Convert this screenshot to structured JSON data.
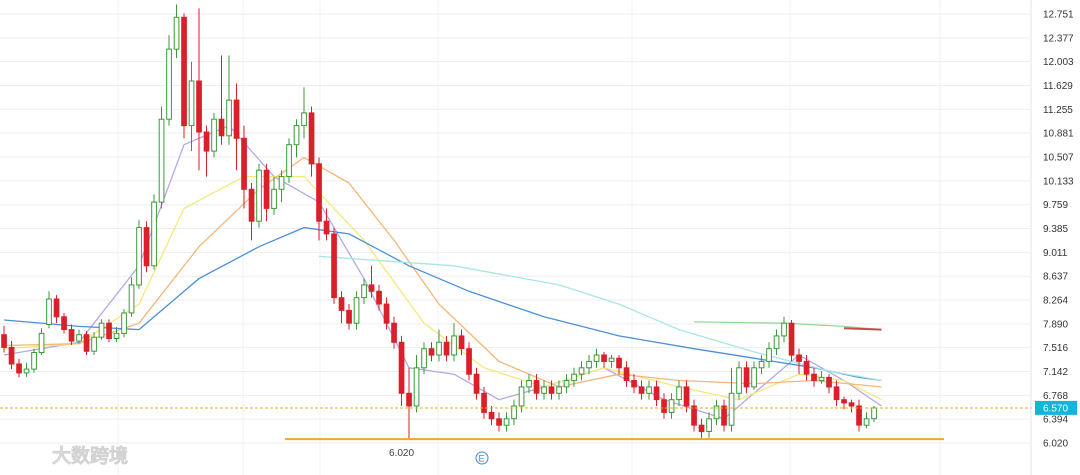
{
  "chart_data": {
    "type": "candlestick",
    "y_ticks": [
      "12.751",
      "12.377",
      "12.003",
      "11.629",
      "11.255",
      "10.881",
      "10.507",
      "10.133",
      "9.759",
      "9.385",
      "9.011",
      "8.637",
      "8.264",
      "7.890",
      "7.516",
      "7.142",
      "6.768",
      "6.394",
      "6.020"
    ],
    "ylim": [
      6.02,
      12.751
    ],
    "current_price_label": "6.570",
    "current_price": 6.57,
    "support_level": 6.08,
    "min_price_label": "6.020",
    "marker_label": "E",
    "grid": true,
    "colors": {
      "up": "#3a9a3a",
      "down": "#d9212b",
      "support": "#f5a623",
      "current": "#f5a623",
      "price_tag": "#13b5d8"
    },
    "candles": [
      [
        7.72,
        7.52,
        7.86,
        7.44
      ],
      [
        7.52,
        7.26,
        7.62,
        7.18
      ],
      [
        7.26,
        7.12,
        7.34,
        7.05
      ],
      [
        7.12,
        7.18,
        7.28,
        7.06
      ],
      [
        7.18,
        7.44,
        7.5,
        7.12
      ],
      [
        7.44,
        7.74,
        7.82,
        7.4
      ],
      [
        7.88,
        8.28,
        8.4,
        7.82
      ],
      [
        8.28,
        8.0,
        8.34,
        7.9
      ],
      [
        8.0,
        7.8,
        8.06,
        7.74
      ],
      [
        7.8,
        7.62,
        7.88,
        7.56
      ],
      [
        7.62,
        7.72,
        7.8,
        7.58
      ],
      [
        7.72,
        7.46,
        7.78,
        7.4
      ],
      [
        7.46,
        7.68,
        7.76,
        7.4
      ],
      [
        7.68,
        7.9,
        7.96,
        7.64
      ],
      [
        7.9,
        7.66,
        7.96,
        7.6
      ],
      [
        7.66,
        7.74,
        7.84,
        7.6
      ],
      [
        7.74,
        8.06,
        8.12,
        7.68
      ],
      [
        8.06,
        8.5,
        8.62,
        8.0
      ],
      [
        8.5,
        9.4,
        9.52,
        8.44
      ],
      [
        9.4,
        8.8,
        9.5,
        8.7
      ],
      [
        8.8,
        9.8,
        9.92,
        8.74
      ],
      [
        9.8,
        11.1,
        11.3,
        9.7
      ],
      [
        11.1,
        12.2,
        12.42,
        11.0
      ],
      [
        12.2,
        12.7,
        12.9,
        12.06
      ],
      [
        12.7,
        11.0,
        12.76,
        10.8
      ],
      [
        11.0,
        11.7,
        12.0,
        10.6
      ],
      [
        11.7,
        10.9,
        12.84,
        10.3
      ],
      [
        10.9,
        10.6,
        11.0,
        10.2
      ],
      [
        10.6,
        11.1,
        11.2,
        10.5
      ],
      [
        11.1,
        10.84,
        12.1,
        10.7
      ],
      [
        10.84,
        11.4,
        12.1,
        10.7
      ],
      [
        11.4,
        10.8,
        11.66,
        10.3
      ],
      [
        10.8,
        10.0,
        11.0,
        9.7
      ],
      [
        10.0,
        9.5,
        10.1,
        9.2
      ],
      [
        9.5,
        10.3,
        10.4,
        9.4
      ],
      [
        10.3,
        9.7,
        10.4,
        9.5
      ],
      [
        9.7,
        10.0,
        10.2,
        9.6
      ],
      [
        10.0,
        10.2,
        10.3,
        9.8
      ],
      [
        10.2,
        10.7,
        10.8,
        10.1
      ],
      [
        10.7,
        11.0,
        11.1,
        10.5
      ],
      [
        11.0,
        11.2,
        11.6,
        10.8
      ],
      [
        11.2,
        10.4,
        11.3,
        10.2
      ],
      [
        10.4,
        9.5,
        10.5,
        9.2
      ],
      [
        9.5,
        9.3,
        9.7,
        9.2
      ],
      [
        9.3,
        8.3,
        9.4,
        8.2
      ],
      [
        8.3,
        8.1,
        8.4,
        7.9
      ],
      [
        8.1,
        7.9,
        8.2,
        7.8
      ],
      [
        7.9,
        8.3,
        8.4,
        7.8
      ],
      [
        8.3,
        8.5,
        8.6,
        8.2
      ],
      [
        8.5,
        8.4,
        8.8,
        8.3
      ],
      [
        8.4,
        8.2,
        8.5,
        8.1
      ],
      [
        8.2,
        7.9,
        8.3,
        7.8
      ],
      [
        7.9,
        7.6,
        8.0,
        7.5
      ],
      [
        7.6,
        6.8,
        7.7,
        6.6
      ],
      [
        6.8,
        6.6,
        7.2,
        6.08
      ],
      [
        6.6,
        7.2,
        7.4,
        6.5
      ],
      [
        7.2,
        7.5,
        7.6,
        7.1
      ],
      [
        7.5,
        7.4,
        7.6,
        7.3
      ],
      [
        7.4,
        7.6,
        7.8,
        7.3
      ],
      [
        7.6,
        7.4,
        7.7,
        7.3
      ],
      [
        7.4,
        7.7,
        7.9,
        7.3
      ],
      [
        7.7,
        7.5,
        7.8,
        7.4
      ],
      [
        7.5,
        7.1,
        7.6,
        7.0
      ],
      [
        7.1,
        6.8,
        7.2,
        6.7
      ],
      [
        6.8,
        6.5,
        6.9,
        6.4
      ],
      [
        6.5,
        6.4,
        6.6,
        6.3
      ],
      [
        6.4,
        6.3,
        6.5,
        6.2
      ],
      [
        6.3,
        6.4,
        6.5,
        6.2
      ],
      [
        6.4,
        6.6,
        6.7,
        6.3
      ],
      [
        6.6,
        6.9,
        7.0,
        6.5
      ],
      [
        6.9,
        7.0,
        7.1,
        6.8
      ],
      [
        7.0,
        6.8,
        7.1,
        6.7
      ],
      [
        6.8,
        6.9,
        7.0,
        6.7
      ],
      [
        6.9,
        6.8,
        7.0,
        6.7
      ],
      [
        6.8,
        6.9,
        7.0,
        6.7
      ],
      [
        6.9,
        7.0,
        7.1,
        6.8
      ],
      [
        7.0,
        7.1,
        7.2,
        6.9
      ],
      [
        7.1,
        7.2,
        7.3,
        7.0
      ],
      [
        7.2,
        7.3,
        7.4,
        7.1
      ],
      [
        7.3,
        7.4,
        7.5,
        7.2
      ],
      [
        7.4,
        7.3,
        7.45,
        7.2
      ],
      [
        7.3,
        7.35,
        7.4,
        7.2
      ],
      [
        7.35,
        7.2,
        7.4,
        7.1
      ],
      [
        7.2,
        7.0,
        7.3,
        6.9
      ],
      [
        7.0,
        6.9,
        7.1,
        6.8
      ],
      [
        6.9,
        6.8,
        7.0,
        6.7
      ],
      [
        6.8,
        6.9,
        7.0,
        6.7
      ],
      [
        6.9,
        6.7,
        7.0,
        6.6
      ],
      [
        6.7,
        6.5,
        6.8,
        6.4
      ],
      [
        6.5,
        6.7,
        6.8,
        6.4
      ],
      [
        6.7,
        6.9,
        7.0,
        6.6
      ],
      [
        6.9,
        6.6,
        7.0,
        6.5
      ],
      [
        6.6,
        6.3,
        6.7,
        6.2
      ],
      [
        6.3,
        6.2,
        6.4,
        6.1
      ],
      [
        6.2,
        6.4,
        6.5,
        6.1
      ],
      [
        6.4,
        6.6,
        6.7,
        6.3
      ],
      [
        6.6,
        6.3,
        6.7,
        6.2
      ],
      [
        6.3,
        6.8,
        7.2,
        6.2
      ],
      [
        6.8,
        7.2,
        7.3,
        6.7
      ],
      [
        7.2,
        6.9,
        7.3,
        6.8
      ],
      [
        6.9,
        7.2,
        7.3,
        6.85
      ],
      [
        7.2,
        7.3,
        7.4,
        7.1
      ],
      [
        7.3,
        7.5,
        7.6,
        7.2
      ],
      [
        7.5,
        7.7,
        7.8,
        7.4
      ],
      [
        7.7,
        7.9,
        8.0,
        7.6
      ],
      [
        7.9,
        7.4,
        7.95,
        7.3
      ],
      [
        7.4,
        7.3,
        7.5,
        7.1
      ],
      [
        7.3,
        7.1,
        7.4,
        7.0
      ],
      [
        7.1,
        7.0,
        7.2,
        6.9
      ],
      [
        7.0,
        7.05,
        7.15,
        6.95
      ],
      [
        7.05,
        6.9,
        7.1,
        6.8
      ],
      [
        6.9,
        6.7,
        7.0,
        6.6
      ],
      [
        6.7,
        6.65,
        6.75,
        6.55
      ],
      [
        6.65,
        6.6,
        6.7,
        6.5
      ],
      [
        6.6,
        6.3,
        6.7,
        6.2
      ],
      [
        6.3,
        6.4,
        6.5,
        6.25
      ],
      [
        6.4,
        6.57,
        6.6,
        6.35
      ]
    ],
    "ma_lines": [
      {
        "color": "#b4a8e6",
        "values": [
          [
            0,
            7.4
          ],
          [
            10,
            7.6
          ],
          [
            18,
            8.8
          ],
          [
            24,
            10.7
          ],
          [
            30,
            11.0
          ],
          [
            36,
            10.2
          ],
          [
            42,
            9.8
          ],
          [
            48,
            8.6
          ],
          [
            54,
            7.2
          ],
          [
            60,
            7.1
          ],
          [
            66,
            6.7
          ],
          [
            72,
            6.9
          ],
          [
            80,
            7.2
          ],
          [
            88,
            6.7
          ],
          [
            96,
            6.4
          ],
          [
            100,
            6.8
          ],
          [
            106,
            7.4
          ],
          [
            112,
            7.0
          ],
          [
            117,
            6.6
          ]
        ]
      },
      {
        "color": "#f5e87a",
        "values": [
          [
            0,
            7.5
          ],
          [
            10,
            7.58
          ],
          [
            18,
            8.2
          ],
          [
            24,
            9.7
          ],
          [
            32,
            10.2
          ],
          [
            40,
            10.2
          ],
          [
            48,
            9.2
          ],
          [
            56,
            7.9
          ],
          [
            64,
            7.2
          ],
          [
            72,
            6.9
          ],
          [
            80,
            7.2
          ],
          [
            90,
            6.9
          ],
          [
            98,
            6.7
          ],
          [
            106,
            7.1
          ],
          [
            112,
            7.0
          ],
          [
            117,
            6.7
          ]
        ]
      },
      {
        "color": "#f4b67a",
        "values": [
          [
            0,
            7.55
          ],
          [
            10,
            7.58
          ],
          [
            18,
            7.9
          ],
          [
            26,
            9.1
          ],
          [
            34,
            10.0
          ],
          [
            40,
            10.5
          ],
          [
            46,
            10.1
          ],
          [
            52,
            9.2
          ],
          [
            58,
            8.2
          ],
          [
            66,
            7.3
          ],
          [
            74,
            6.9
          ],
          [
            82,
            7.1
          ],
          [
            90,
            7.0
          ],
          [
            100,
            6.95
          ],
          [
            108,
            7.0
          ],
          [
            117,
            6.9
          ]
        ]
      },
      {
        "color": "#4a90d9",
        "values": [
          [
            0,
            7.95
          ],
          [
            10,
            7.85
          ],
          [
            18,
            7.8
          ],
          [
            26,
            8.6
          ],
          [
            34,
            9.1
          ],
          [
            40,
            9.4
          ],
          [
            46,
            9.3
          ],
          [
            54,
            8.8
          ],
          [
            62,
            8.4
          ],
          [
            72,
            8.0
          ],
          [
            82,
            7.7
          ],
          [
            92,
            7.5
          ],
          [
            100,
            7.35
          ],
          [
            108,
            7.2
          ],
          [
            114,
            7.05
          ],
          [
            117,
            7.0
          ]
        ]
      },
      {
        "color": "#a8e6e4",
        "values": [
          [
            42,
            8.95
          ],
          [
            60,
            8.8
          ],
          [
            74,
            8.5
          ],
          [
            82,
            8.2
          ],
          [
            90,
            7.8
          ],
          [
            100,
            7.45
          ],
          [
            110,
            7.15
          ],
          [
            117,
            7.0
          ]
        ]
      },
      {
        "color": "#98d898",
        "values": [
          [
            92,
            7.92
          ],
          [
            104,
            7.9
          ],
          [
            112,
            7.85
          ],
          [
            117,
            7.8
          ]
        ]
      },
      {
        "color": "#c94a4a",
        "values": [
          [
            112,
            7.82
          ],
          [
            117,
            7.8
          ]
        ]
      }
    ],
    "watermark": {
      "text": "大数跨境"
    }
  }
}
